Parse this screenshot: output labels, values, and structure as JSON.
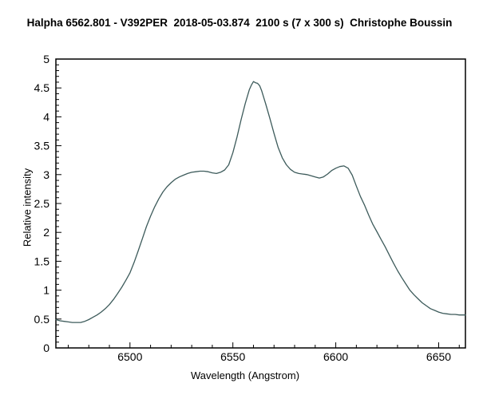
{
  "chart_data": {
    "type": "line",
    "title": "Halpha 6562.801 - V392PER  2018-05-03.874  2100 s (7 x 300 s)  Christophe Boussin",
    "xlabel": "Wavelength (Angstrom)",
    "ylabel": "Relative intensity",
    "xlim": [
      6464,
      6663
    ],
    "ylim": [
      0,
      5
    ],
    "x_major_ticks": [
      6500,
      6550,
      6600,
      6650
    ],
    "x_minor_step": 10,
    "y_major_ticks": [
      0,
      0.5,
      1,
      1.5,
      2,
      2.5,
      3,
      3.5,
      4,
      4.5,
      5
    ],
    "y_minor_step": 0.1,
    "grid": false,
    "legend": null,
    "background": "#FFFFFF",
    "axis_color": "#000000",
    "line_color": "#3D5B5B",
    "points": [
      [
        6464,
        0.49
      ],
      [
        6466,
        0.47
      ],
      [
        6468,
        0.46
      ],
      [
        6470,
        0.45
      ],
      [
        6472,
        0.44
      ],
      [
        6474,
        0.44
      ],
      [
        6476,
        0.44
      ],
      [
        6478,
        0.46
      ],
      [
        6480,
        0.49
      ],
      [
        6482,
        0.53
      ],
      [
        6484,
        0.57
      ],
      [
        6486,
        0.62
      ],
      [
        6488,
        0.68
      ],
      [
        6490,
        0.75
      ],
      [
        6492,
        0.84
      ],
      [
        6494,
        0.94
      ],
      [
        6496,
        1.05
      ],
      [
        6498,
        1.17
      ],
      [
        6500,
        1.3
      ],
      [
        6502,
        1.48
      ],
      [
        6504,
        1.68
      ],
      [
        6506,
        1.89
      ],
      [
        6508,
        2.1
      ],
      [
        6510,
        2.28
      ],
      [
        6512,
        2.44
      ],
      [
        6514,
        2.58
      ],
      [
        6516,
        2.7
      ],
      [
        6518,
        2.79
      ],
      [
        6520,
        2.86
      ],
      [
        6522,
        2.92
      ],
      [
        6524,
        2.96
      ],
      [
        6526,
        2.99
      ],
      [
        6528,
        3.02
      ],
      [
        6530,
        3.04
      ],
      [
        6532,
        3.05
      ],
      [
        6534,
        3.06
      ],
      [
        6536,
        3.06
      ],
      [
        6538,
        3.05
      ],
      [
        6540,
        3.03
      ],
      [
        6542,
        3.02
      ],
      [
        6544,
        3.04
      ],
      [
        6546,
        3.08
      ],
      [
        6548,
        3.17
      ],
      [
        6550,
        3.38
      ],
      [
        6552,
        3.65
      ],
      [
        6554,
        3.95
      ],
      [
        6556,
        4.23
      ],
      [
        6558,
        4.47
      ],
      [
        6559,
        4.55
      ],
      [
        6560,
        4.61
      ],
      [
        6561,
        4.59
      ],
      [
        6562,
        4.58
      ],
      [
        6563,
        4.54
      ],
      [
        6564,
        4.45
      ],
      [
        6566,
        4.22
      ],
      [
        6568,
        3.97
      ],
      [
        6570,
        3.71
      ],
      [
        6572,
        3.47
      ],
      [
        6574,
        3.29
      ],
      [
        6576,
        3.17
      ],
      [
        6578,
        3.09
      ],
      [
        6580,
        3.04
      ],
      [
        6582,
        3.02
      ],
      [
        6584,
        3.01
      ],
      [
        6586,
        3.0
      ],
      [
        6588,
        2.98
      ],
      [
        6590,
        2.96
      ],
      [
        6592,
        2.94
      ],
      [
        6594,
        2.96
      ],
      [
        6596,
        3.01
      ],
      [
        6598,
        3.07
      ],
      [
        6600,
        3.11
      ],
      [
        6602,
        3.14
      ],
      [
        6604,
        3.15
      ],
      [
        6606,
        3.11
      ],
      [
        6608,
        2.99
      ],
      [
        6610,
        2.8
      ],
      [
        6612,
        2.62
      ],
      [
        6614,
        2.47
      ],
      [
        6616,
        2.3
      ],
      [
        6618,
        2.14
      ],
      [
        6620,
        2.01
      ],
      [
        6622,
        1.88
      ],
      [
        6624,
        1.75
      ],
      [
        6626,
        1.61
      ],
      [
        6628,
        1.47
      ],
      [
        6630,
        1.34
      ],
      [
        6632,
        1.22
      ],
      [
        6634,
        1.11
      ],
      [
        6636,
        1.0
      ],
      [
        6638,
        0.92
      ],
      [
        6640,
        0.85
      ],
      [
        6642,
        0.78
      ],
      [
        6644,
        0.73
      ],
      [
        6646,
        0.68
      ],
      [
        6648,
        0.65
      ],
      [
        6650,
        0.62
      ],
      [
        6652,
        0.6
      ],
      [
        6654,
        0.59
      ],
      [
        6656,
        0.58
      ],
      [
        6658,
        0.58
      ],
      [
        6660,
        0.57
      ],
      [
        6663,
        0.57
      ]
    ]
  }
}
